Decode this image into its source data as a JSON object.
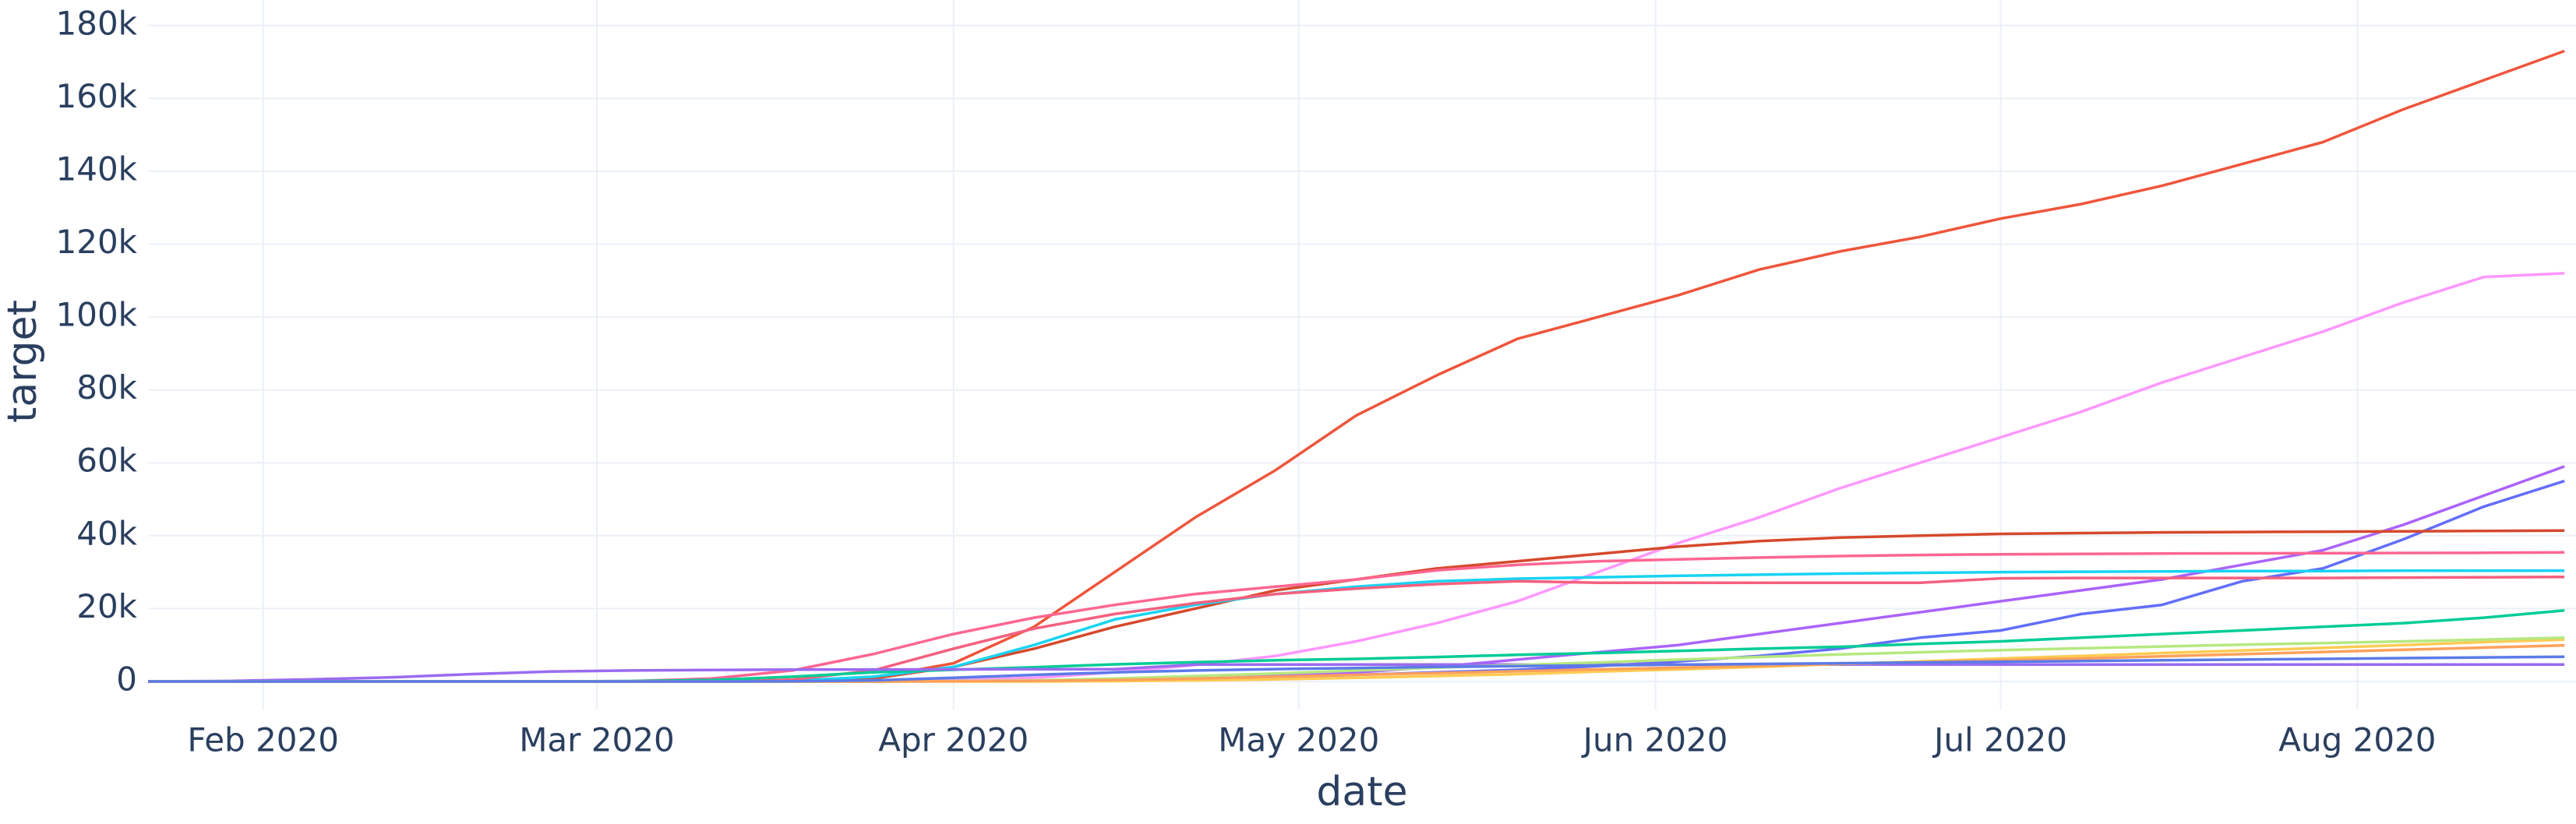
{
  "chart_data": {
    "type": "line",
    "x_label": "date",
    "y_label": "target",
    "x": [
      "2020-01-22",
      "2020-01-29",
      "2020-02-05",
      "2020-02-12",
      "2020-02-19",
      "2020-02-26",
      "2020-03-04",
      "2020-03-11",
      "2020-03-18",
      "2020-03-25",
      "2020-04-01",
      "2020-04-08",
      "2020-04-15",
      "2020-04-22",
      "2020-04-29",
      "2020-05-06",
      "2020-05-13",
      "2020-05-20",
      "2020-05-27",
      "2020-06-03",
      "2020-06-10",
      "2020-06-17",
      "2020-06-24",
      "2020-07-01",
      "2020-07-08",
      "2020-07-15",
      "2020-07-22",
      "2020-07-29",
      "2020-08-05",
      "2020-08-12",
      "2020-08-19"
    ],
    "xlim": [
      "2020-01-22",
      "2020-08-20"
    ],
    "xticks": [
      {
        "value": "2020-02-01",
        "label": "Feb 2020"
      },
      {
        "value": "2020-03-01",
        "label": "Mar 2020"
      },
      {
        "value": "2020-04-01",
        "label": "Apr 2020"
      },
      {
        "value": "2020-05-01",
        "label": "May 2020"
      },
      {
        "value": "2020-06-01",
        "label": "Jun 2020"
      },
      {
        "value": "2020-07-01",
        "label": "Jul 2020"
      },
      {
        "value": "2020-08-01",
        "label": "Aug 2020"
      }
    ],
    "ylim": [
      -7700,
      187000
    ],
    "yticks": [
      0,
      {
        "value": 20000,
        "label": "20k"
      },
      {
        "value": 40000,
        "label": "40k"
      },
      {
        "value": 60000,
        "label": "60k"
      },
      {
        "value": 80000,
        "label": "80k"
      },
      {
        "value": 100000,
        "label": "100k"
      },
      {
        "value": 120000,
        "label": "120k"
      },
      {
        "value": 140000,
        "label": "140k"
      },
      {
        "value": 160000,
        "label": "160k"
      },
      {
        "value": 180000,
        "label": "180k"
      }
    ],
    "grid": true,
    "series": [
      {
        "color": "#EF553B",
        "values": [
          0,
          0,
          0,
          0,
          0,
          0,
          0,
          30,
          100,
          1000,
          5000,
          15000,
          30000,
          45000,
          58000,
          73000,
          84000,
          94000,
          100000,
          106000,
          113000,
          118000,
          122000,
          127000,
          131000,
          136000,
          142000,
          148000,
          157000,
          165000,
          173000
        ]
      },
      {
        "color": "#FF97FF",
        "values": [
          0,
          0,
          0,
          0,
          0,
          0,
          0,
          0,
          0,
          100,
          300,
          1000,
          2500,
          4500,
          7000,
          11000,
          16000,
          22000,
          30000,
          38000,
          45000,
          53000,
          60000,
          67000,
          74000,
          82000,
          89000,
          96000,
          104000,
          111000,
          112000
        ]
      },
      {
        "color": "#AB63FA",
        "values": [
          0,
          0,
          0,
          0,
          0,
          0,
          0,
          0,
          0,
          0,
          50,
          150,
          300,
          700,
          1500,
          2500,
          4000,
          6000,
          8000,
          10000,
          13000,
          16000,
          19000,
          22000,
          25000,
          28000,
          32000,
          36000,
          43000,
          51000,
          59000
        ]
      },
      {
        "color": "#636EFA",
        "values": [
          0,
          0,
          0,
          0,
          0,
          0,
          0,
          0,
          0,
          0,
          100,
          200,
          500,
          800,
          1200,
          1800,
          2500,
          3200,
          4200,
          5500,
          7000,
          9000,
          12000,
          14000,
          18500,
          21000,
          27500,
          31000,
          39000,
          48000,
          55000
        ]
      },
      {
        "color": "#D6492C",
        "values": [
          0,
          0,
          0,
          0,
          0,
          0,
          0,
          0,
          100,
          800,
          4000,
          9000,
          15000,
          20000,
          25000,
          28000,
          31000,
          33000,
          35000,
          37000,
          38500,
          39500,
          40000,
          40500,
          40700,
          40900,
          41000,
          41100,
          41200,
          41300,
          41400
        ]
      },
      {
        "color": "#FF6692",
        "values": [
          0,
          0,
          0,
          0,
          0,
          0,
          100,
          800,
          3000,
          7500,
          13000,
          17500,
          21000,
          24000,
          26000,
          28000,
          30500,
          32000,
          33000,
          33500,
          34000,
          34400,
          34700,
          34900,
          35000,
          35100,
          35150,
          35200,
          35250,
          35300,
          35400
        ]
      },
      {
        "color": "#19D3F3",
        "values": [
          0,
          0,
          0,
          0,
          0,
          0,
          0,
          0,
          200,
          1300,
          4000,
          10000,
          17000,
          21000,
          24000,
          26000,
          27500,
          28200,
          28600,
          29000,
          29300,
          29600,
          29800,
          30000,
          30100,
          30200,
          30300,
          30300,
          30400,
          30400,
          30400
        ]
      },
      {
        "color": "#F4607E",
        "values": [
          0,
          0,
          0,
          0,
          0,
          0,
          0,
          0,
          500,
          3000,
          9000,
          14500,
          18500,
          21500,
          24000,
          25500,
          26700,
          27500,
          27100,
          27100,
          27100,
          27100,
          27100,
          28300,
          28400,
          28400,
          28400,
          28400,
          28500,
          28600,
          28700
        ]
      },
      {
        "color": "#00CC96",
        "values": [
          0,
          0,
          0,
          0,
          0,
          0,
          100,
          400,
          1300,
          2500,
          3200,
          3900,
          4700,
          5300,
          5800,
          6200,
          6700,
          7300,
          7800,
          8400,
          9000,
          9500,
          10300,
          11000,
          12000,
          13000,
          14000,
          15000,
          16000,
          17500,
          19500
        ]
      },
      {
        "color": "#9A6BF0",
        "values": [
          17,
          130,
          560,
          1100,
          2000,
          2700,
          3000,
          3160,
          3250,
          3290,
          3310,
          3340,
          3350,
          4640,
          4640,
          4640,
          4640,
          4640,
          4640,
          4640,
          4640,
          4640,
          4640,
          4640,
          4640,
          4640,
          4640,
          4640,
          4640,
          4640,
          4640
        ]
      },
      {
        "color": "#FECB52",
        "values": [
          0,
          0,
          0,
          0,
          0,
          0,
          0,
          0,
          0,
          0,
          0,
          0,
          100,
          300,
          600,
          1000,
          1500,
          2000,
          2700,
          3300,
          4000,
          4800,
          5500,
          6300,
          7000,
          7800,
          8500,
          9200,
          10000,
          10800,
          11500
        ]
      },
      {
        "color": "#B6E880",
        "values": [
          0,
          0,
          0,
          0,
          0,
          0,
          0,
          0,
          0,
          0,
          100,
          300,
          800,
          1500,
          2200,
          3000,
          3800,
          4500,
          5200,
          6000,
          6700,
          7400,
          8000,
          8600,
          9100,
          9600,
          10100,
          10500,
          11000,
          11500,
          12000
        ]
      },
      {
        "color": "#FFA15A",
        "values": [
          0,
          0,
          0,
          0,
          0,
          0,
          0,
          0,
          0,
          0,
          50,
          150,
          400,
          800,
          1300,
          1800,
          2300,
          2800,
          3300,
          3800,
          4300,
          4800,
          5300,
          5800,
          6300,
          6900,
          7500,
          8100,
          8700,
          9300,
          9900
        ]
      },
      {
        "color": "#5B7BE8",
        "values": [
          0,
          0,
          0,
          0,
          0,
          0,
          0,
          0,
          50,
          300,
          1000,
          1800,
          2500,
          3000,
          3400,
          3700,
          4000,
          4200,
          4400,
          4600,
          4800,
          5000,
          5200,
          5400,
          5600,
          5800,
          6000,
          6200,
          6400,
          6600,
          6800
        ]
      }
    ]
  }
}
